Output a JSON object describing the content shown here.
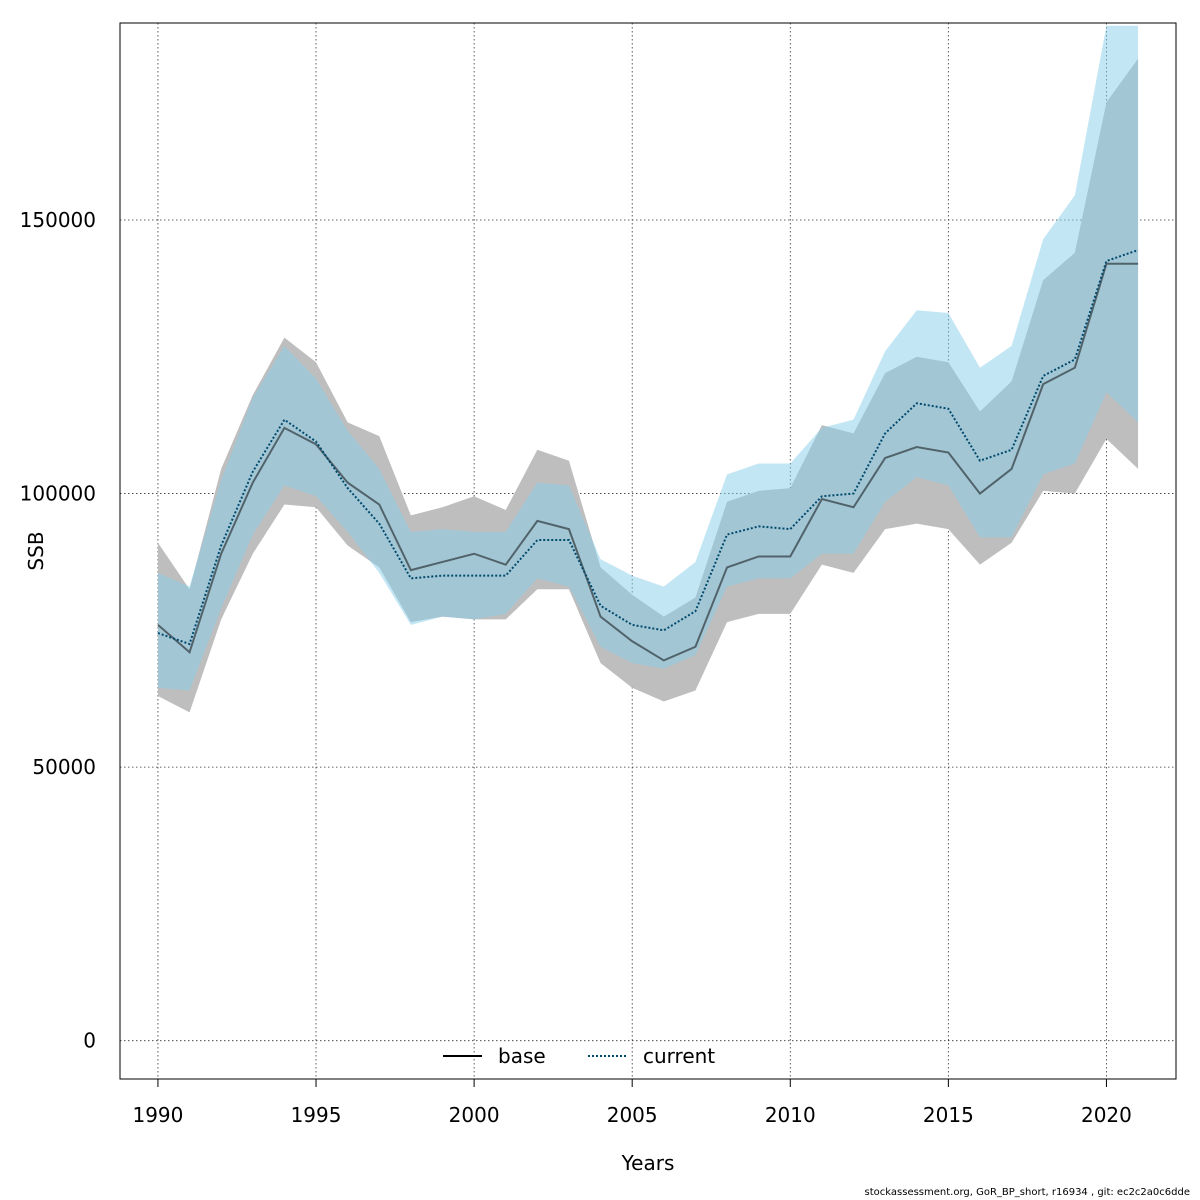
{
  "chart_data": {
    "type": "area",
    "xlabel": "Years",
    "ylabel": "SSB",
    "xlim": [
      1988.8,
      2022.2
    ],
    "ylim": [
      -7000,
      186000
    ],
    "xticks": [
      1990,
      1995,
      2000,
      2005,
      2010,
      2015,
      2020
    ],
    "yticks": [
      0,
      50000,
      100000,
      150000
    ],
    "grid": true,
    "legend_position": "bottom-center",
    "x": [
      1990,
      1991,
      1992,
      1993,
      1994,
      1995,
      1996,
      1997,
      1998,
      1999,
      2000,
      2001,
      2002,
      2003,
      2004,
      2005,
      2006,
      2007,
      2008,
      2009,
      2010,
      2011,
      2012,
      2013,
      2014,
      2015,
      2016,
      2017,
      2018,
      2019,
      2020,
      2021
    ],
    "series": [
      {
        "name": "base",
        "color": "#000000",
        "band_color": "#bebebe",
        "line_style": "solid",
        "values": [
          76000,
          71000,
          89000,
          102000,
          112000,
          109000,
          102000,
          98000,
          86000,
          87500,
          89000,
          87000,
          95000,
          93500,
          77500,
          73000,
          69500,
          72000,
          86500,
          88500,
          88500,
          99000,
          97500,
          106500,
          108500,
          107500,
          100000,
          104500,
          120000,
          123000,
          142000,
          142000
        ],
        "lower": [
          63000,
          60000,
          77000,
          89000,
          98000,
          97500,
          90500,
          86500,
          76500,
          77500,
          77000,
          77000,
          82500,
          82500,
          69000,
          64500,
          62000,
          64000,
          76500,
          78000,
          78000,
          87000,
          85500,
          93500,
          94500,
          93500,
          87000,
          91000,
          100500,
          100000,
          110000,
          104500
        ],
        "upper": [
          91000,
          82500,
          104500,
          118000,
          128500,
          124000,
          113000,
          110500,
          96000,
          97500,
          99500,
          97000,
          108000,
          106000,
          86500,
          81500,
          77500,
          81000,
          98500,
          100500,
          101000,
          112500,
          111000,
          122000,
          125000,
          124000,
          115000,
          120500,
          139000,
          144000,
          171500,
          179500
        ]
      },
      {
        "name": "current",
        "color": "#004a6e",
        "band_color": "#87ceeb",
        "line_style": "dotted",
        "values": [
          74500,
          72500,
          90500,
          104000,
          113500,
          109500,
          101000,
          94500,
          84500,
          85000,
          85000,
          85000,
          91500,
          91500,
          79500,
          76000,
          75000,
          78500,
          92500,
          94000,
          93500,
          99500,
          100000,
          111000,
          116500,
          115500,
          106000,
          108000,
          121500,
          124500,
          142500,
          144500
        ],
        "lower": [
          64500,
          64000,
          79000,
          92500,
          101500,
          99500,
          93000,
          85500,
          76000,
          77500,
          77000,
          78000,
          84500,
          83000,
          72000,
          69000,
          68000,
          70500,
          83000,
          84500,
          84500,
          89000,
          89000,
          98500,
          103000,
          101500,
          92000,
          92000,
          103500,
          105500,
          118500,
          113000
        ],
        "upper": [
          85500,
          83000,
          102500,
          117500,
          127000,
          121000,
          111500,
          104500,
          93000,
          93500,
          93000,
          93000,
          102000,
          101500,
          88000,
          85000,
          83000,
          87500,
          103500,
          105500,
          105500,
          112000,
          113500,
          126000,
          133500,
          133000,
          123000,
          127000,
          146500,
          154500,
          185500,
          185500
        ]
      }
    ]
  },
  "footer_text": "stockassessment.org, GoR_BP_short, r16934 , git: ec2c2a0c6dde"
}
